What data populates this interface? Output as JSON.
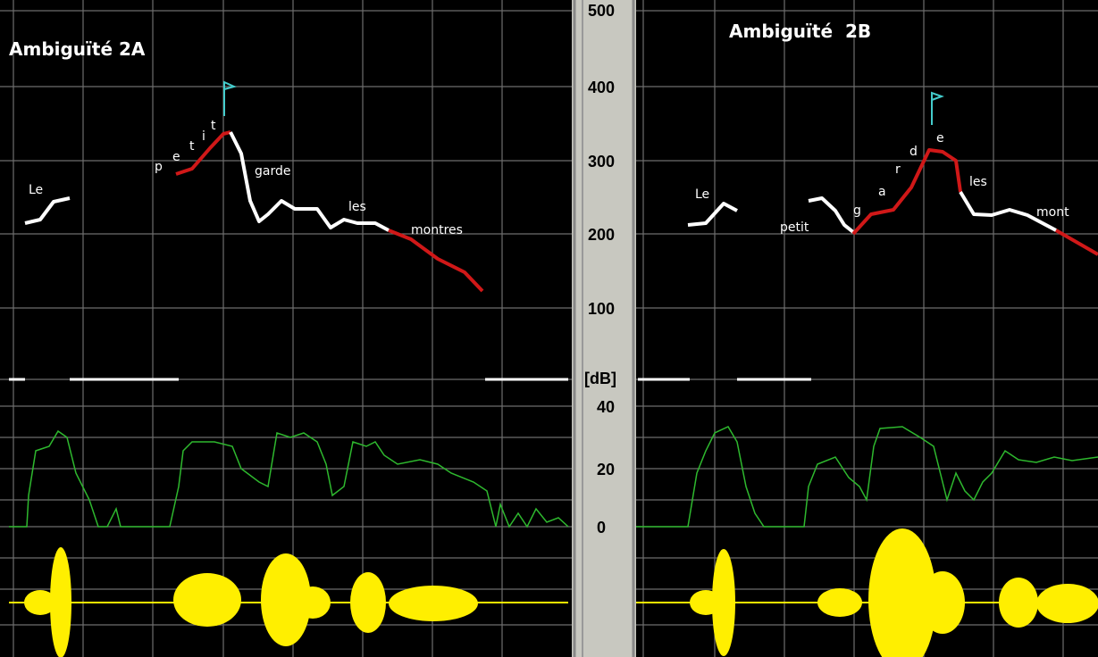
{
  "left_panel": {
    "title": "Ambiguïté 2A",
    "words": [
      "Le",
      "p",
      "e",
      "t",
      "i",
      "t",
      "garde",
      "les",
      "montres"
    ]
  },
  "scale": {
    "hz_labels": [
      "500",
      "400",
      "300",
      "200",
      "100"
    ],
    "db_unit": "[dB]",
    "db_labels": [
      "40",
      "20",
      "0"
    ]
  },
  "right_panel": {
    "title": "Ambiguïté  2B",
    "words": [
      "Le",
      "petit",
      "g",
      "a",
      "r",
      "d",
      "e",
      "les",
      "mont"
    ]
  }
}
